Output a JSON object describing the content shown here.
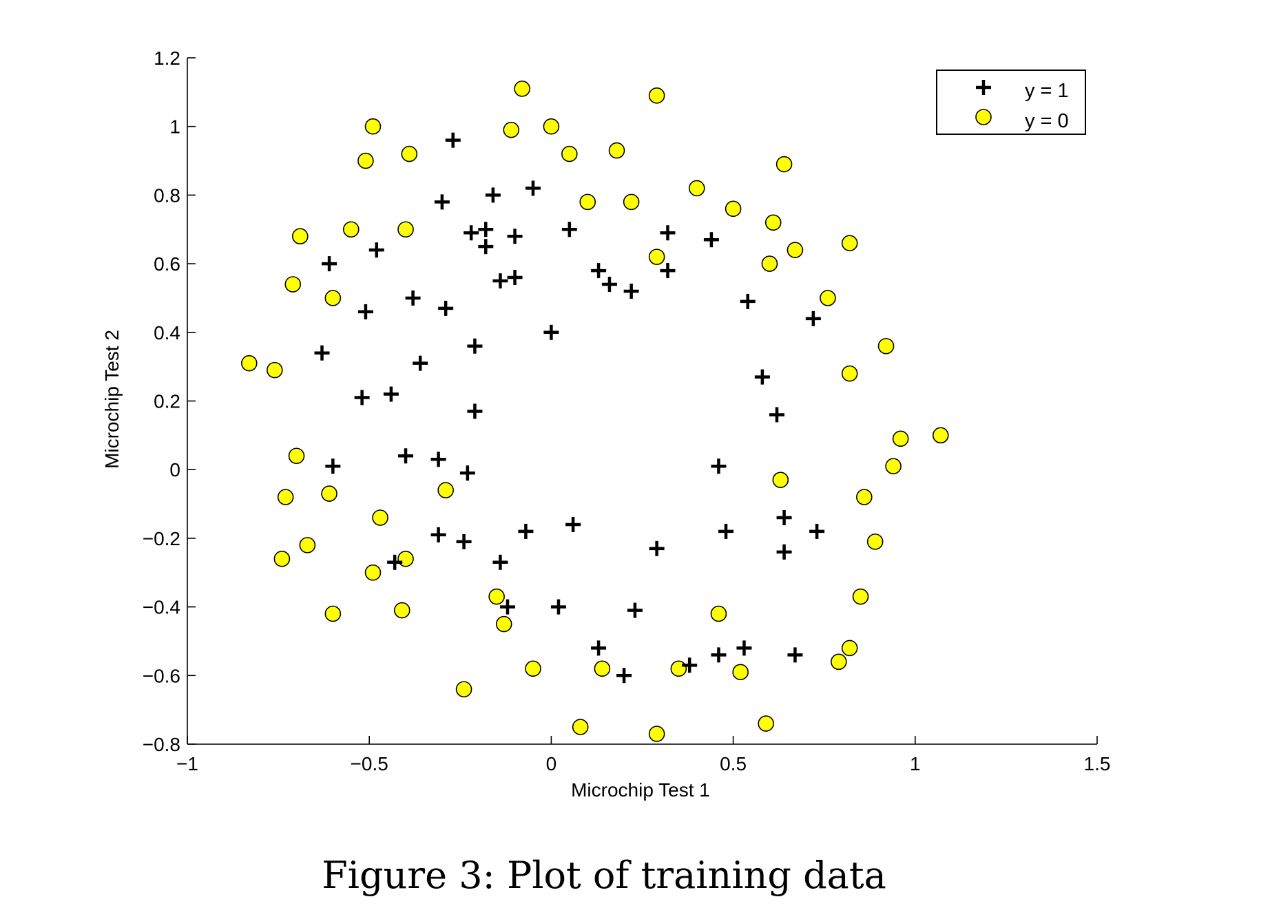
{
  "chart_data": {
    "type": "scatter",
    "title": "",
    "xlabel": "Microchip Test 1",
    "ylabel": "Microchip Test 2",
    "xlim": [
      -1,
      1.5
    ],
    "ylim": [
      -0.8,
      1.2
    ],
    "xticks": [
      -1,
      -0.5,
      0,
      0.5,
      1,
      1.5
    ],
    "xtick_labels": [
      "−1",
      "−0.5",
      "0",
      "0.5",
      "1",
      "1.5"
    ],
    "yticks": [
      -0.8,
      -0.6,
      -0.4,
      -0.2,
      0,
      0.2,
      0.4,
      0.6,
      0.8,
      1,
      1.2
    ],
    "ytick_labels": [
      "−0.8",
      "−0.6",
      "−0.4",
      "−0.2",
      "0",
      "0.2",
      "0.4",
      "0.6",
      "0.8",
      "1",
      "1.2"
    ],
    "grid": false,
    "legend_position": "top-right",
    "series": [
      {
        "name": "y = 1",
        "marker": "plus",
        "color": "#000000",
        "points": [
          [
            -0.27,
            0.96
          ],
          [
            -0.3,
            0.78
          ],
          [
            -0.16,
            0.8
          ],
          [
            -0.05,
            0.82
          ],
          [
            -0.22,
            0.69
          ],
          [
            -0.18,
            0.7
          ],
          [
            -0.1,
            0.68
          ],
          [
            0.05,
            0.7
          ],
          [
            0.32,
            0.69
          ],
          [
            0.44,
            0.67
          ],
          [
            -0.18,
            0.65
          ],
          [
            -0.48,
            0.64
          ],
          [
            -0.61,
            0.6
          ],
          [
            0.13,
            0.58
          ],
          [
            0.32,
            0.58
          ],
          [
            -0.14,
            0.55
          ],
          [
            -0.1,
            0.56
          ],
          [
            0.16,
            0.54
          ],
          [
            0.22,
            0.52
          ],
          [
            -0.38,
            0.5
          ],
          [
            -0.29,
            0.47
          ],
          [
            -0.51,
            0.46
          ],
          [
            0.54,
            0.49
          ],
          [
            0.72,
            0.44
          ],
          [
            0.0,
            0.4
          ],
          [
            -0.21,
            0.36
          ],
          [
            -0.63,
            0.34
          ],
          [
            -0.36,
            0.31
          ],
          [
            0.58,
            0.27
          ],
          [
            -0.52,
            0.21
          ],
          [
            -0.44,
            0.22
          ],
          [
            -0.21,
            0.17
          ],
          [
            0.62,
            0.16
          ],
          [
            -0.6,
            0.01
          ],
          [
            -0.4,
            0.04
          ],
          [
            -0.31,
            0.03
          ],
          [
            -0.23,
            -0.01
          ],
          [
            0.46,
            0.01
          ],
          [
            -0.31,
            -0.19
          ],
          [
            -0.24,
            -0.21
          ],
          [
            -0.07,
            -0.18
          ],
          [
            0.06,
            -0.16
          ],
          [
            0.29,
            -0.23
          ],
          [
            0.48,
            -0.18
          ],
          [
            0.64,
            -0.14
          ],
          [
            0.73,
            -0.18
          ],
          [
            0.64,
            -0.24
          ],
          [
            -0.43,
            -0.27
          ],
          [
            -0.14,
            -0.27
          ],
          [
            -0.12,
            -0.4
          ],
          [
            0.02,
            -0.4
          ],
          [
            0.23,
            -0.41
          ],
          [
            0.13,
            -0.52
          ],
          [
            0.2,
            -0.6
          ],
          [
            0.38,
            -0.57
          ],
          [
            0.46,
            -0.54
          ],
          [
            0.53,
            -0.52
          ],
          [
            0.67,
            -0.54
          ]
        ]
      },
      {
        "name": "y = 0",
        "marker": "circle",
        "color": "#ffff00",
        "points": [
          [
            -0.08,
            1.11
          ],
          [
            0.29,
            1.09
          ],
          [
            -0.49,
            1.0
          ],
          [
            -0.11,
            0.99
          ],
          [
            0.0,
            1.0
          ],
          [
            -0.51,
            0.9
          ],
          [
            -0.39,
            0.92
          ],
          [
            0.05,
            0.92
          ],
          [
            0.18,
            0.93
          ],
          [
            0.64,
            0.89
          ],
          [
            0.4,
            0.82
          ],
          [
            0.1,
            0.78
          ],
          [
            0.22,
            0.78
          ],
          [
            0.5,
            0.76
          ],
          [
            -0.55,
            0.7
          ],
          [
            -0.4,
            0.7
          ],
          [
            -0.69,
            0.68
          ],
          [
            0.61,
            0.72
          ],
          [
            0.67,
            0.64
          ],
          [
            0.82,
            0.66
          ],
          [
            0.29,
            0.62
          ],
          [
            0.6,
            0.6
          ],
          [
            -0.71,
            0.54
          ],
          [
            -0.6,
            0.5
          ],
          [
            0.76,
            0.5
          ],
          [
            0.92,
            0.36
          ],
          [
            -0.83,
            0.31
          ],
          [
            -0.76,
            0.29
          ],
          [
            0.82,
            0.28
          ],
          [
            1.07,
            0.1
          ],
          [
            0.96,
            0.09
          ],
          [
            -0.7,
            0.04
          ],
          [
            0.94,
            0.01
          ],
          [
            0.63,
            -0.03
          ],
          [
            -0.29,
            -0.06
          ],
          [
            -0.73,
            -0.08
          ],
          [
            -0.61,
            -0.07
          ],
          [
            0.86,
            -0.08
          ],
          [
            -0.47,
            -0.14
          ],
          [
            -0.67,
            -0.22
          ],
          [
            0.89,
            -0.21
          ],
          [
            -0.74,
            -0.26
          ],
          [
            -0.4,
            -0.26
          ],
          [
            -0.49,
            -0.3
          ],
          [
            -0.15,
            -0.37
          ],
          [
            0.85,
            -0.37
          ],
          [
            -0.6,
            -0.42
          ],
          [
            -0.41,
            -0.41
          ],
          [
            0.46,
            -0.42
          ],
          [
            -0.13,
            -0.45
          ],
          [
            -0.05,
            -0.58
          ],
          [
            0.14,
            -0.58
          ],
          [
            0.35,
            -0.58
          ],
          [
            0.52,
            -0.59
          ],
          [
            0.79,
            -0.56
          ],
          [
            0.82,
            -0.52
          ],
          [
            -0.24,
            -0.64
          ],
          [
            0.08,
            -0.75
          ],
          [
            0.29,
            -0.77
          ],
          [
            0.59,
            -0.74
          ]
        ]
      }
    ]
  },
  "caption": "Figure 3: Plot of training data"
}
